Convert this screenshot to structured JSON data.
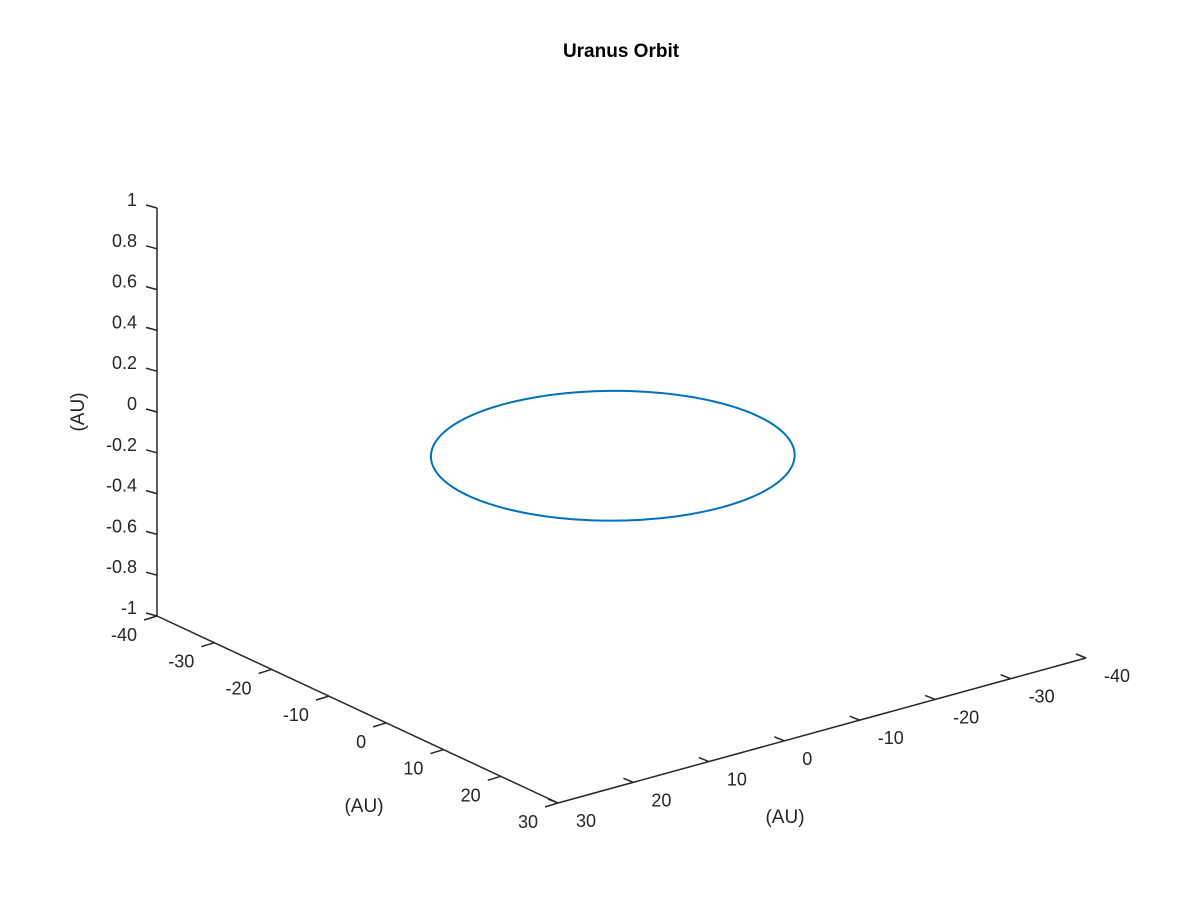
{
  "chart_data": {
    "type": "line",
    "title": "Uranus Orbit",
    "xlabel": "(AU)",
    "ylabel": "(AU)",
    "zlabel": "(AU)",
    "x_ticks": [
      "-40",
      "-30",
      "-20",
      "-10",
      "0",
      "10",
      "20",
      "30"
    ],
    "y_ticks": [
      "-40",
      "-30",
      "-20",
      "-10",
      "0",
      "10",
      "20",
      "30"
    ],
    "z_ticks": [
      "-1",
      "-0.8",
      "-0.6",
      "-0.4",
      "-0.2",
      "0",
      "0.2",
      "0.4",
      "0.6",
      "0.8",
      "1"
    ],
    "xlim": [
      -40,
      30
    ],
    "ylim": [
      -40,
      30
    ],
    "zlim": [
      -1,
      1
    ],
    "grid": false,
    "series": [
      {
        "color": "#0072BD",
        "shape": "ellipse",
        "center": [
          -0.2,
          -0.2,
          0
        ],
        "semi_axes": [
          19.2,
          19.2
        ],
        "z_constant": 0
      }
    ]
  }
}
